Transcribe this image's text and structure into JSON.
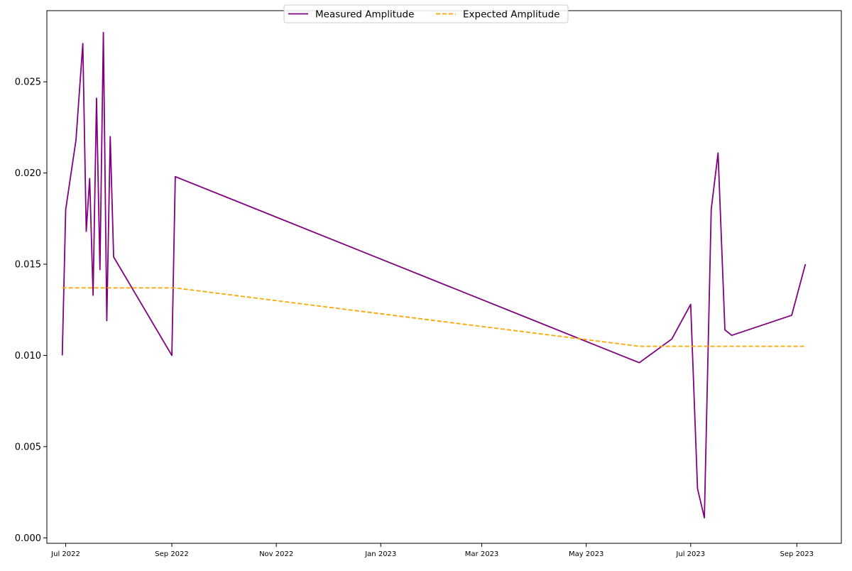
{
  "chart_data": {
    "type": "line",
    "title": "",
    "xlabel": "",
    "ylabel": "",
    "x_axis_type": "date",
    "xlim": [
      "2022-06-20",
      "2023-09-27"
    ],
    "ylim": [
      -0.0003,
      0.0289
    ],
    "grid": false,
    "legend_position": "top-center",
    "yticks": [
      0.0,
      0.005,
      0.01,
      0.015,
      0.02,
      0.025
    ],
    "ytick_labels": [
      "0.000",
      "0.005",
      "0.010",
      "0.015",
      "0.020",
      "0.025"
    ],
    "xticks": [
      "2022-07-01",
      "2022-09-01",
      "2022-11-01",
      "2023-01-01",
      "2023-03-01",
      "2023-05-01",
      "2023-07-01",
      "2023-09-01"
    ],
    "xtick_labels": [
      "Jul 2022",
      "Sep 2022",
      "Nov 2022",
      "Jan 2023",
      "Mar 2023",
      "May 2023",
      "Jul 2023",
      "Sep 2023"
    ],
    "series": [
      {
        "name": "Measured Amplitude",
        "color": "#800080",
        "style": "solid",
        "points": [
          [
            "2022-06-29",
            0.01
          ],
          [
            "2022-07-01",
            0.018
          ],
          [
            "2022-07-07",
            0.0218
          ],
          [
            "2022-07-11",
            0.0271
          ],
          [
            "2022-07-13",
            0.0168
          ],
          [
            "2022-07-15",
            0.0197
          ],
          [
            "2022-07-17",
            0.0133
          ],
          [
            "2022-07-19",
            0.0241
          ],
          [
            "2022-07-21",
            0.0147
          ],
          [
            "2022-07-23",
            0.0277
          ],
          [
            "2022-07-25",
            0.0119
          ],
          [
            "2022-07-27",
            0.022
          ],
          [
            "2022-07-29",
            0.0154
          ],
          [
            "2022-09-01",
            0.01
          ],
          [
            "2022-09-03",
            0.0198
          ],
          [
            "2023-06-01",
            0.0096
          ],
          [
            "2023-06-20",
            0.0109
          ],
          [
            "2023-07-01",
            0.0128
          ],
          [
            "2023-07-05",
            0.0027
          ],
          [
            "2023-07-09",
            0.0011
          ],
          [
            "2023-07-13",
            0.018
          ],
          [
            "2023-07-17",
            0.0211
          ],
          [
            "2023-07-21",
            0.0114
          ],
          [
            "2023-07-25",
            0.0111
          ],
          [
            "2023-08-29",
            0.0122
          ],
          [
            "2023-09-06",
            0.015
          ]
        ]
      },
      {
        "name": "Expected Amplitude",
        "color": "#FFA500",
        "style": "dashed",
        "points": [
          [
            "2022-06-29",
            0.0137
          ],
          [
            "2022-09-03",
            0.0137
          ],
          [
            "2023-06-01",
            0.0105
          ],
          [
            "2023-09-06",
            0.0105
          ]
        ]
      }
    ]
  }
}
